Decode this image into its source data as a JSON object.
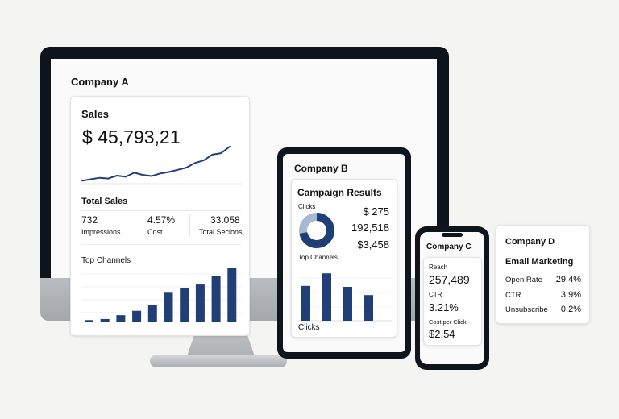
{
  "monitor": {
    "company": "Company A",
    "sales_title": "Sales",
    "sales_value": "$ 45,793,21",
    "sales_trend": [
      0.06,
      0.1,
      0.14,
      0.12,
      0.2,
      0.17,
      0.28,
      0.22,
      0.19,
      0.26,
      0.3,
      0.36,
      0.42,
      0.55,
      0.62,
      0.78,
      0.82,
      1.0
    ],
    "total_sales_label": "Total Sales",
    "stats": [
      {
        "value": "732",
        "label": "Impressions"
      },
      {
        "value": "4.57%",
        "label": "Cost"
      },
      {
        "value": "33.058",
        "label": "Total Secions"
      }
    ],
    "top_channels_label": "Top Channels",
    "channel_bars": [
      0.04,
      0.06,
      0.13,
      0.21,
      0.32,
      0.54,
      0.62,
      0.69,
      0.84,
      1.0
    ],
    "color": "#1f3f76"
  },
  "tablet": {
    "company": "Company B",
    "title": "Campaign Results",
    "clicks_label": "Clicks",
    "donut_fraction": 0.72,
    "values": [
      "$ 275",
      "192,518",
      "$3,458"
    ],
    "top_channels_label": "Top Channels",
    "bars": [
      0.72,
      0.98,
      0.7,
      0.53
    ],
    "bottom_label": "Clicks"
  },
  "phone": {
    "company": "Company C",
    "reach_label": "Reach",
    "reach_value": "257,489",
    "ctr_label": "CTR",
    "ctr_value": "3.21%",
    "cpc_label": "Cost per Click",
    "cpc_value": "$2,54"
  },
  "card_d": {
    "company": "Company D",
    "title": "Email Marketing",
    "rows": [
      {
        "label": "Open Rate",
        "value": "29.4%"
      },
      {
        "label": "CTR",
        "value": "3.9%"
      },
      {
        "label": "Unsubscribe",
        "value": "0,2%"
      }
    ]
  }
}
